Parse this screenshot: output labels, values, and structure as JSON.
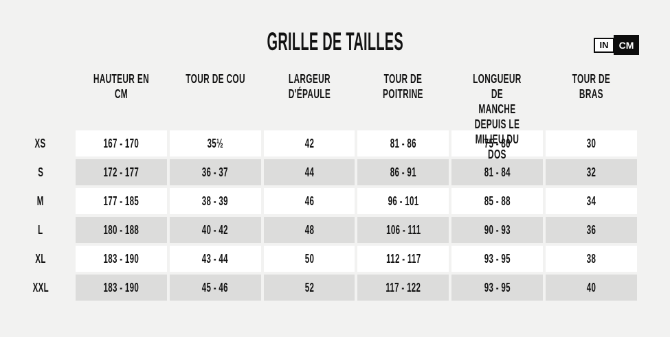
{
  "title": "GRILLE DE TAILLES",
  "unit_toggle": {
    "options": [
      {
        "label": "IN",
        "selected": false
      },
      {
        "label": "CM",
        "selected": true
      }
    ]
  },
  "colors": {
    "page_background": "#f2f2f1",
    "row_white": "#ffffff",
    "row_gray": "#dcdcdb",
    "selected_toggle_bg": "#0d0d0d",
    "text": "#121212"
  },
  "table": {
    "columns": [
      {
        "label": "HAUTEUR EN CM"
      },
      {
        "label": "TOUR DE COU"
      },
      {
        "label": "LARGEUR D'ÉPAULE"
      },
      {
        "label": "TOUR DE POITRINE"
      },
      {
        "label": "LONGUEUR DE\nMANCHE DEPUIS LE\nMILIEU DU DOS"
      },
      {
        "label": "TOUR DE BRAS"
      }
    ],
    "rows": [
      {
        "label": "XS",
        "values": [
          "167 - 170",
          "35½",
          "42",
          "81 - 86",
          "75 - 80",
          "30"
        ]
      },
      {
        "label": "S",
        "values": [
          "172 - 177",
          "36 - 37",
          "44",
          "86 - 91",
          "81 - 84",
          "32"
        ]
      },
      {
        "label": "M",
        "values": [
          "177 - 185",
          "38 - 39",
          "46",
          "96 - 101",
          "85 - 88",
          "34"
        ]
      },
      {
        "label": "L",
        "values": [
          "180 - 188",
          "40 - 42",
          "48",
          "106 - 111",
          "90 - 93",
          "36"
        ]
      },
      {
        "label": "XL",
        "values": [
          "183 - 190",
          "43 - 44",
          "50",
          "112 - 117",
          "93 - 95",
          "38"
        ]
      },
      {
        "label": "XXL",
        "values": [
          "183 - 190",
          "45 - 46",
          "52",
          "117 - 122",
          "93 - 95",
          "40"
        ]
      }
    ]
  }
}
